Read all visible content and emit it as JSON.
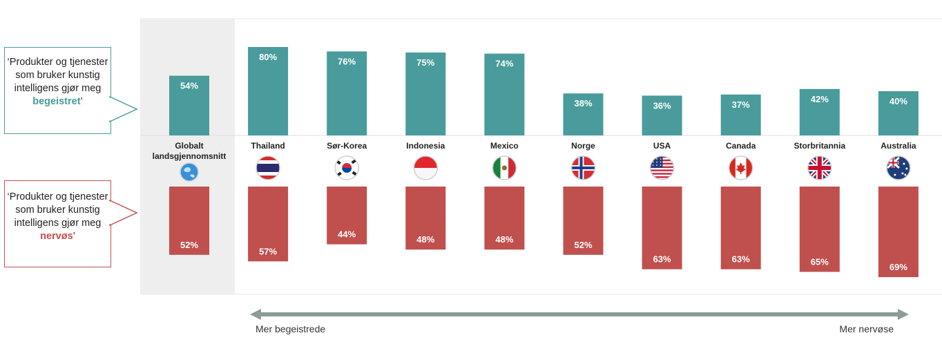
{
  "callouts": {
    "top": {
      "text_prefix": "‘Produkter og tjenester som bruker kunstig intelligens gjør meg ",
      "highlight": "begeistret",
      "suffix": "’"
    },
    "bottom": {
      "text_prefix": "‘Produkter og tjenester som bruker kunstig intelligens gjør meg ",
      "highlight": "nervøs",
      "suffix": "’"
    }
  },
  "arrow": {
    "left_label": "Mer begeistrede",
    "right_label": "Mer nervøse"
  },
  "colors": {
    "excited": "#4a9b9b",
    "nervous": "#c0504d",
    "highlight_band": "#eeeeee",
    "arrow": "#8c9a98"
  },
  "chart_data": {
    "type": "bar",
    "categories": [
      "Globalt landsgjennomsnitt",
      "Thailand",
      "Sør-Korea",
      "Indonesia",
      "Mexico",
      "Norge",
      "USA",
      "Canada",
      "Storbritannia",
      "Australia"
    ],
    "category_lines": [
      [
        "Globalt",
        "landsgjennomsnitt"
      ],
      [
        "Thailand"
      ],
      [
        "Sør-Korea"
      ],
      [
        "Indonesia"
      ],
      [
        "Mexico"
      ],
      [
        "Norge"
      ],
      [
        "USA"
      ],
      [
        "Canada"
      ],
      [
        "Storbritannia"
      ],
      [
        "Australia"
      ]
    ],
    "flag_icons": [
      "globe-icon",
      "thailand-flag-icon",
      "south-korea-flag-icon",
      "indonesia-flag-icon",
      "mexico-flag-icon",
      "norway-flag-icon",
      "usa-flag-icon",
      "canada-flag-icon",
      "uk-flag-icon",
      "australia-flag-icon"
    ],
    "series": [
      {
        "values": [
          54,
          80,
          76,
          75,
          74,
          38,
          36,
          37,
          42,
          40
        ],
        "labels": [
          "54%",
          "80%",
          "76%",
          "75%",
          "74%",
          "38%",
          "36%",
          "37%",
          "42%",
          "40%"
        ]
      },
      {
        "values": [
          52,
          57,
          44,
          48,
          48,
          52,
          63,
          63,
          65,
          69
        ],
        "labels": [
          "52%",
          "57%",
          "44%",
          "48%",
          "48%",
          "52%",
          "63%",
          "63%",
          "65%",
          "69%"
        ]
      }
    ],
    "highlighted_category": "Globalt landsgjennomsnitt"
  }
}
